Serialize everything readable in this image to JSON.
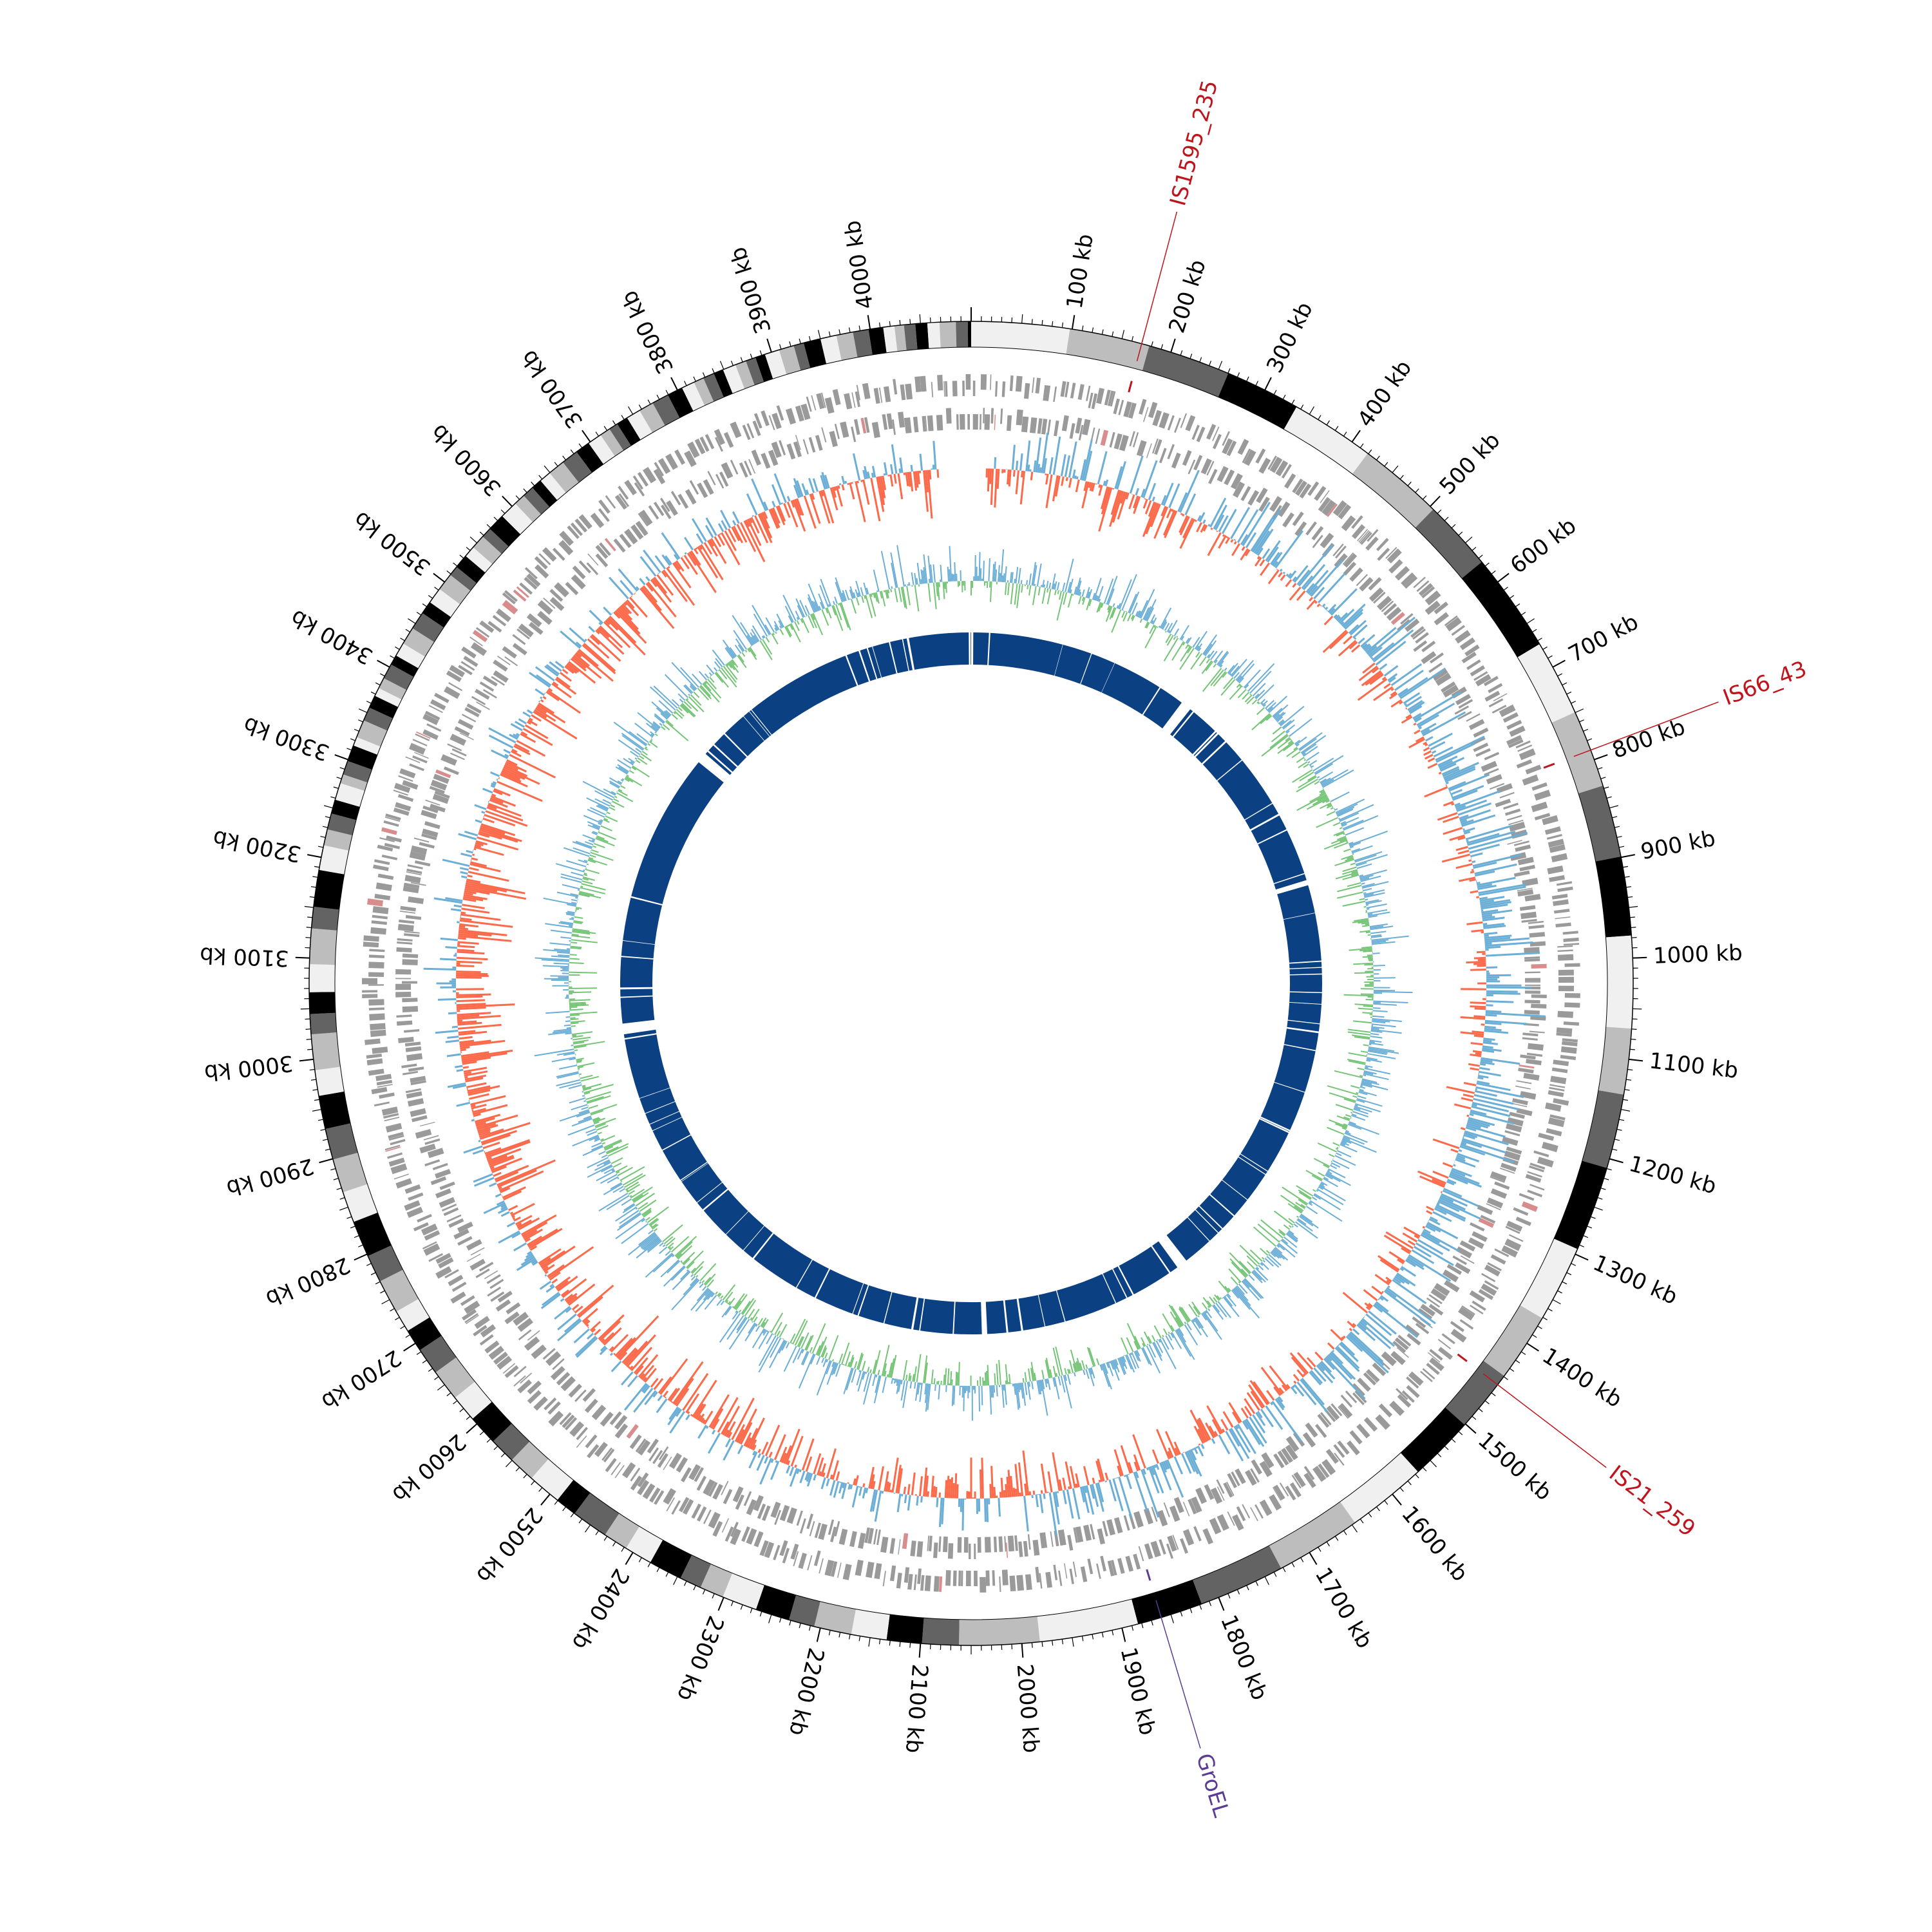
{
  "genome": {
    "length_kb": 4100,
    "tick_labels": [
      "100 kb",
      "200 kb",
      "300 kb",
      "400 kb",
      "500 kb",
      "600 kb",
      "700 kb",
      "800 kb",
      "900 kb",
      "1000 kb",
      "1100 kb",
      "1200 kb",
      "1300 kb",
      "1400 kb",
      "1500 kb",
      "1600 kb",
      "1700 kb",
      "1800 kb",
      "1900 kb",
      "2000 kb",
      "2100 kb",
      "2200 kb",
      "2300 kb",
      "2400 kb",
      "2500 kb",
      "2600 kb",
      "2700 kb",
      "2800 kb",
      "2900 kb",
      "3000 kb",
      "3100 kb",
      "3200 kb",
      "3300 kb",
      "3400 kb",
      "3500 kb",
      "3600 kb",
      "3700 kb",
      "3800 kb",
      "3900 kb",
      "4000 kb"
    ],
    "tick_values_kb": [
      100,
      200,
      300,
      400,
      500,
      600,
      700,
      800,
      900,
      1000,
      1100,
      1200,
      1300,
      1400,
      1500,
      1600,
      1700,
      1800,
      1900,
      2000,
      2100,
      2200,
      2300,
      2400,
      2500,
      2600,
      2700,
      2800,
      2900,
      3000,
      3100,
      3200,
      3300,
      3400,
      3500,
      3600,
      3700,
      3800,
      3900,
      4000
    ]
  },
  "annotations": [
    {
      "label": "IS1595_235",
      "position_kb": 170,
      "color": "#c0141c"
    },
    {
      "label": "IS66_43",
      "position_kb": 790,
      "color": "#c0141c"
    },
    {
      "label": "IS21_259",
      "position_kb": 1450,
      "color": "#c0141c"
    },
    {
      "label": "GroEL",
      "position_kb": 1860,
      "color": "#5a3c96"
    }
  ],
  "colors": {
    "ideogram_shades": [
      "#f0f0f0",
      "#bdbdbd",
      "#636363",
      "#000000"
    ],
    "gene_tracks": "#9a9a9a",
    "gene_highlight": "#d98c8c",
    "gc_skew_positive": "#6baed6",
    "gc_skew_negative": "#fb6a4a",
    "gc_content_positive": "#6baed6",
    "gc_content_negative": "#74c476",
    "inner_ring": "#0b4082"
  }
}
